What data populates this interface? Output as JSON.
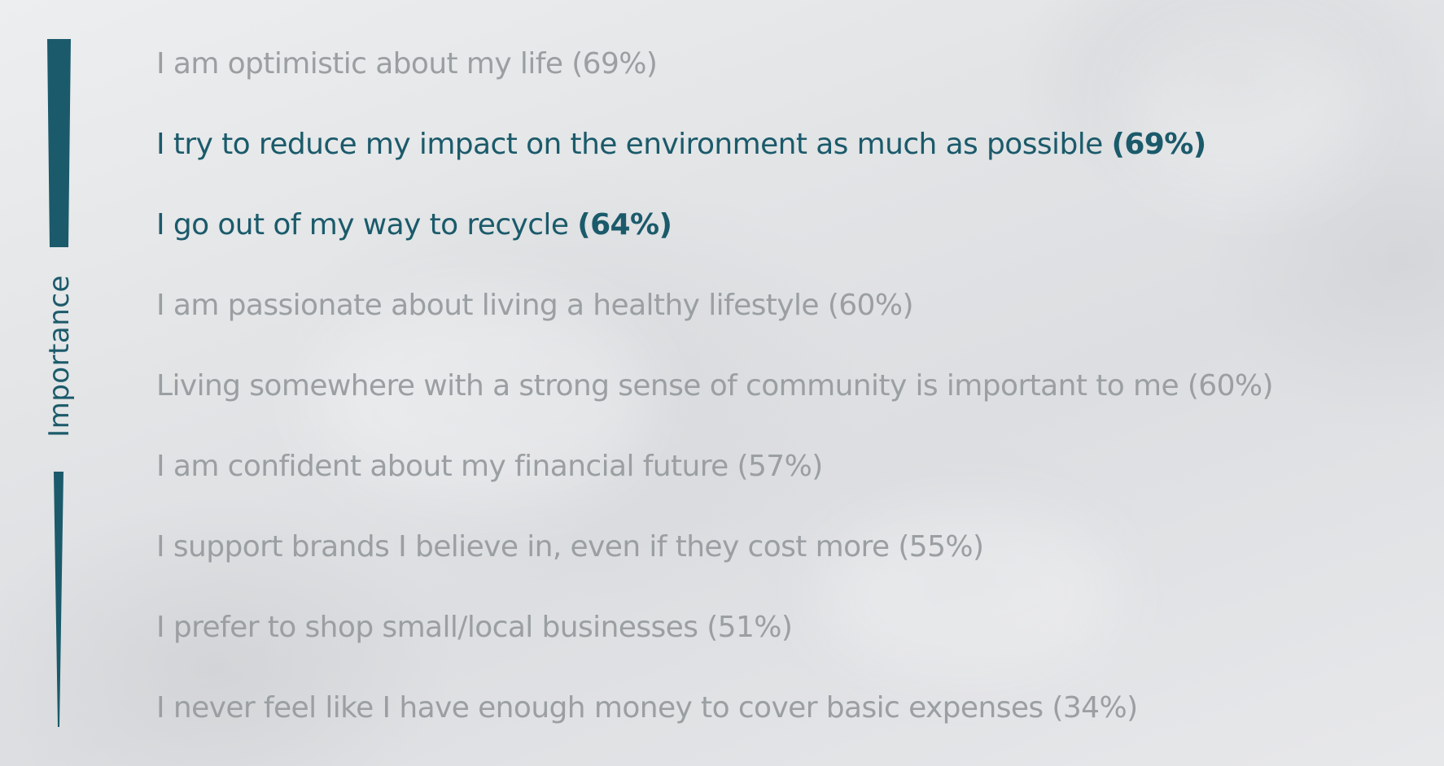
{
  "scale": {
    "label": "Importance",
    "color": "#1b5a6a"
  },
  "colors": {
    "highlight": "#1b5a6a",
    "muted": "#9b9fa2"
  },
  "statements": [
    {
      "text": "I am optimistic about my life",
      "percent": "(69%)",
      "highlighted": false
    },
    {
      "text": "I try to reduce my impact on the environment as much as possible",
      "percent": "(69%)",
      "highlighted": true
    },
    {
      "text": "I go out of my way to recycle",
      "percent": "(64%)",
      "highlighted": true
    },
    {
      "text": "I am passionate about living a healthy lifestyle",
      "percent": "(60%)",
      "highlighted": false
    },
    {
      "text": "Living somewhere with a strong sense of community is important to me",
      "percent": "(60%)",
      "highlighted": false
    },
    {
      "text": "I am confident about my financial future",
      "percent": "(57%)",
      "highlighted": false
    },
    {
      "text": "I support brands I believe in, even if they cost more",
      "percent": "(55%)",
      "highlighted": false
    },
    {
      "text": "I prefer to shop small/local businesses",
      "percent": "(51%)",
      "highlighted": false
    },
    {
      "text": "I never feel like I have enough money to cover basic expenses",
      "percent": "(34%)",
      "highlighted": false
    }
  ]
}
